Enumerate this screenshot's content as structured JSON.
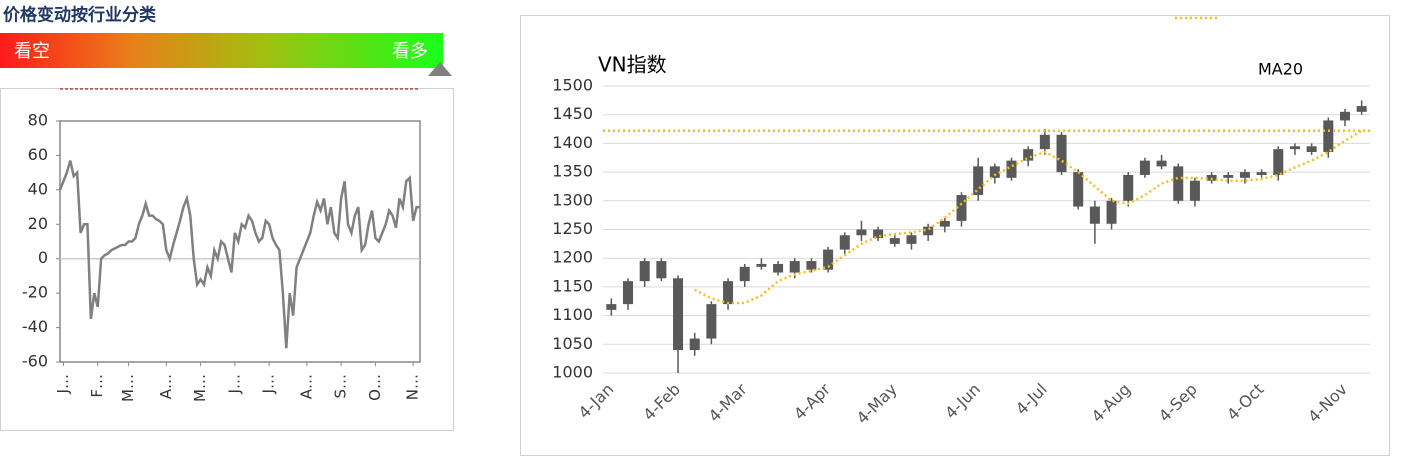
{
  "header": {
    "title": "价格变动按行业分类",
    "bearish": "看空",
    "bullish": "看多"
  },
  "chart_data": [
    {
      "type": "line",
      "color": "#808080",
      "values": [
        40,
        45,
        50,
        57,
        48,
        50,
        15,
        20,
        20,
        -35,
        -20,
        -28,
        0,
        2,
        3,
        5,
        6,
        7,
        8,
        8,
        10,
        10,
        12,
        20,
        25,
        32,
        25,
        25,
        23,
        22,
        20,
        5,
        0,
        8,
        15,
        22,
        30,
        35,
        25,
        0,
        -15,
        -12,
        -15,
        -5,
        -10,
        5,
        0,
        10,
        8,
        0,
        -8,
        15,
        10,
        20,
        18,
        25,
        22,
        15,
        10,
        12,
        22,
        20,
        12,
        8,
        5,
        -20,
        -52,
        -20,
        -33,
        -5,
        0,
        5,
        10,
        15,
        25,
        33,
        28,
        35,
        20,
        30,
        15,
        12,
        35,
        45,
        20,
        15,
        25,
        30,
        5,
        8,
        20,
        28,
        12,
        10,
        15,
        20,
        28,
        25,
        18,
        35,
        30,
        45,
        47,
        22,
        30,
        30
      ],
      "xlim": [
        0,
        105
      ],
      "xticks": [
        {
          "value": 1,
          "label": "J…"
        },
        {
          "value": 11,
          "label": "F…"
        },
        {
          "value": 20,
          "label": "M…"
        },
        {
          "value": 31,
          "label": "A…"
        },
        {
          "value": 41,
          "label": "M…"
        },
        {
          "value": 51,
          "label": "J…"
        },
        {
          "value": 61,
          "label": "J…"
        },
        {
          "value": 72,
          "label": "A…"
        },
        {
          "value": 82,
          "label": "S…"
        },
        {
          "value": 92,
          "label": "O…"
        },
        {
          "value": 103,
          "label": "N…"
        }
      ],
      "ylim": [
        -60,
        80
      ],
      "yticks": [
        -60,
        -40,
        -20,
        0,
        20,
        40,
        60,
        80
      ]
    },
    {
      "type": "candlestick",
      "title": "VN指数",
      "color": "#595959",
      "grid": true,
      "legend": "top-right",
      "categories": [
        "4-Jan",
        null,
        null,
        null,
        "4-Feb",
        null,
        null,
        null,
        "4-Mar",
        null,
        null,
        null,
        null,
        "4-Apr",
        null,
        null,
        null,
        "4-May",
        null,
        null,
        null,
        null,
        "4-Jun",
        null,
        null,
        null,
        "4-Jul",
        null,
        null,
        null,
        null,
        "4-Aug",
        null,
        null,
        null,
        "4-Sep",
        null,
        null,
        null,
        "4-Oct",
        null,
        null,
        null,
        null,
        "4-Nov",
        null
      ],
      "open": [
        1110,
        1120,
        1160,
        1195,
        1165,
        1040,
        1060,
        1120,
        1160,
        1185,
        1190,
        1175,
        1195,
        1180,
        1215,
        1240,
        1250,
        1235,
        1225,
        1240,
        1255,
        1265,
        1310,
        1360,
        1340,
        1370,
        1390,
        1415,
        1350,
        1290,
        1260,
        1300,
        1345,
        1370,
        1360,
        1300,
        1335,
        1345,
        1340,
        1350,
        1345,
        1390,
        1395,
        1385,
        1440,
        1455
      ],
      "high": [
        1130,
        1165,
        1200,
        1200,
        1170,
        1070,
        1125,
        1165,
        1190,
        1200,
        1195,
        1200,
        1200,
        1220,
        1245,
        1265,
        1255,
        1240,
        1245,
        1260,
        1270,
        1315,
        1375,
        1365,
        1375,
        1395,
        1425,
        1420,
        1355,
        1300,
        1305,
        1350,
        1375,
        1380,
        1365,
        1340,
        1350,
        1350,
        1355,
        1355,
        1395,
        1400,
        1400,
        1445,
        1460,
        1475
      ],
      "low": [
        1100,
        1110,
        1150,
        1160,
        1000,
        1030,
        1050,
        1110,
        1150,
        1180,
        1170,
        1165,
        1175,
        1175,
        1205,
        1230,
        1230,
        1220,
        1215,
        1230,
        1245,
        1255,
        1300,
        1330,
        1335,
        1360,
        1380,
        1345,
        1285,
        1225,
        1250,
        1290,
        1340,
        1355,
        1295,
        1290,
        1330,
        1330,
        1330,
        1340,
        1335,
        1380,
        1380,
        1375,
        1430,
        1450
      ],
      "close": [
        1120,
        1160,
        1195,
        1165,
        1040,
        1060,
        1120,
        1160,
        1185,
        1190,
        1175,
        1195,
        1180,
        1215,
        1240,
        1250,
        1235,
        1225,
        1240,
        1255,
        1265,
        1310,
        1360,
        1340,
        1370,
        1390,
        1415,
        1350,
        1290,
        1260,
        1300,
        1345,
        1370,
        1360,
        1300,
        1335,
        1345,
        1340,
        1350,
        1345,
        1390,
        1395,
        1385,
        1440,
        1455,
        1465
      ],
      "series": [
        {
          "name": "MA20",
          "color": "#f0c020",
          "values": [
            null,
            null,
            null,
            null,
            null,
            1145,
            1130,
            1122,
            1122,
            1135,
            1160,
            1172,
            1178,
            1185,
            1205,
            1225,
            1238,
            1242,
            1245,
            1250,
            1270,
            1295,
            1320,
            1345,
            1360,
            1375,
            1385,
            1370,
            1350,
            1325,
            1300,
            1295,
            1310,
            1330,
            1340,
            1340,
            1338,
            1335,
            1335,
            1338,
            1345,
            1358,
            1370,
            1385,
            1405,
            1422
          ]
        }
      ],
      "hline": {
        "value": 1422,
        "color": "#f0c020"
      },
      "ylim": [
        1000,
        1500
      ],
      "yticks": [
        1000,
        1050,
        1100,
        1150,
        1200,
        1250,
        1300,
        1350,
        1400,
        1450,
        1500
      ]
    }
  ]
}
